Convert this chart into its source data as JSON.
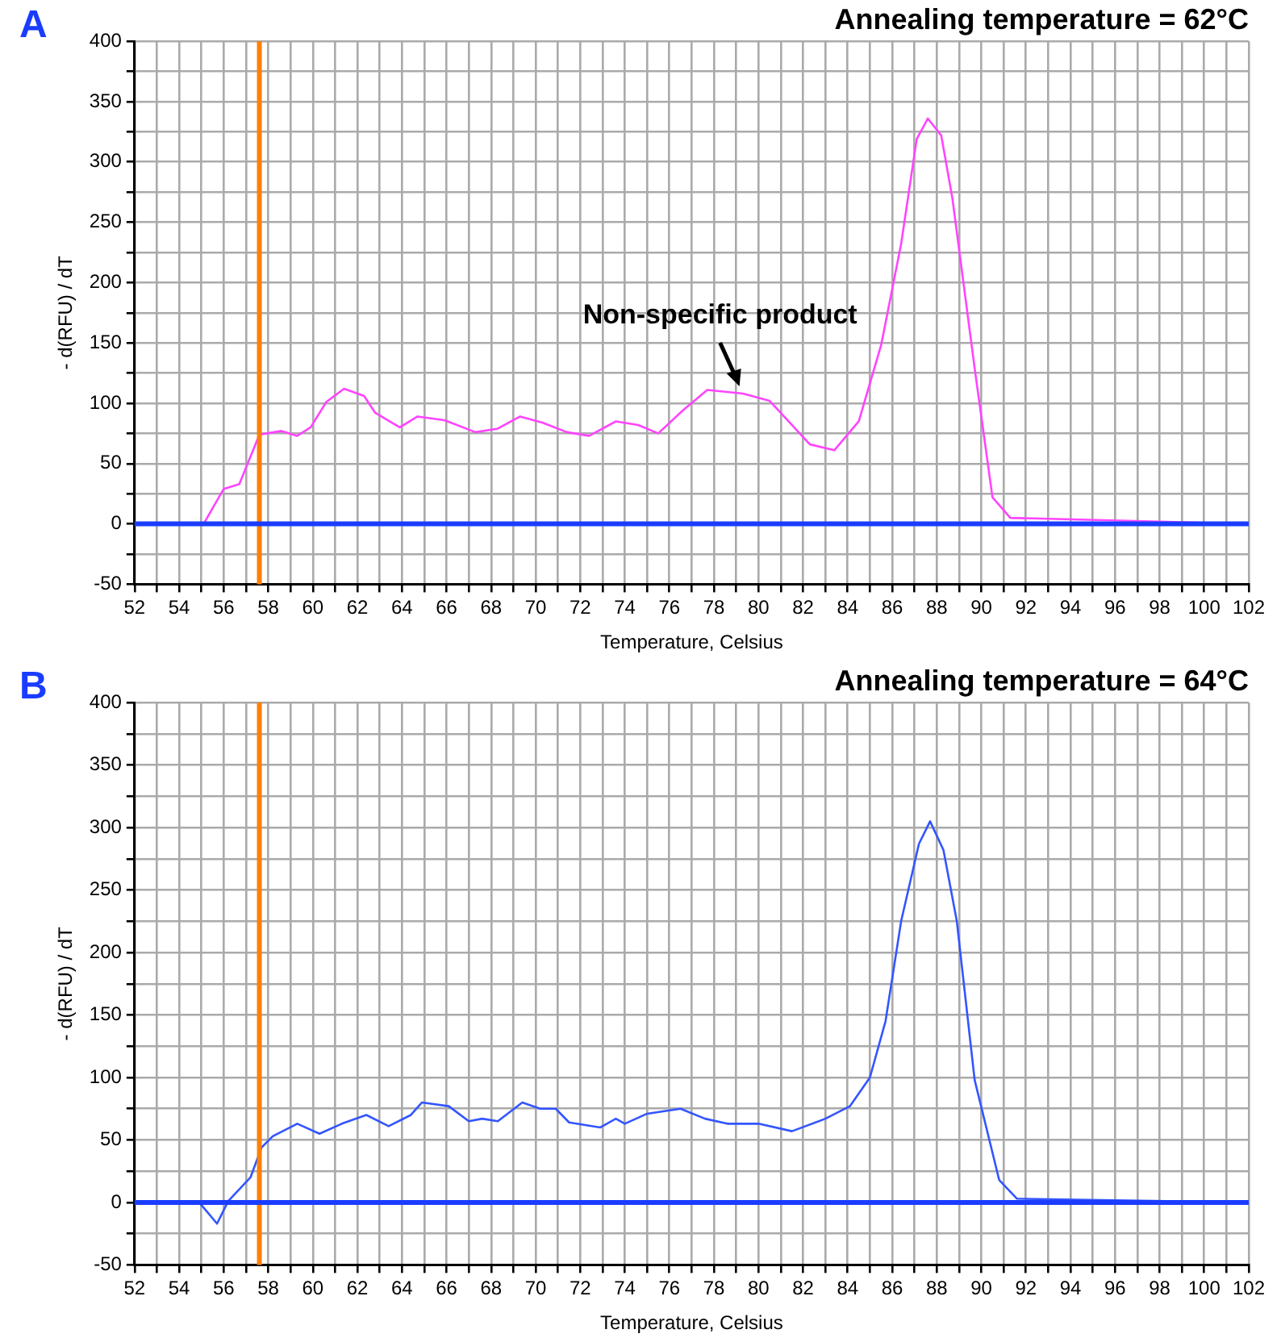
{
  "chart_data": [
    {
      "type": "line",
      "title": "Annealing temperature = 62°C",
      "xlabel": "Temperature, Celsius",
      "ylabel": "- d(RFU) / dT",
      "annotations": [
        "A",
        {
          "text": "Non-specific product",
          "x": 79,
          "y": 110
        }
      ],
      "x": [
        55.1,
        56.0,
        56.7,
        57.6,
        58.6,
        59.3,
        59.9,
        60.6,
        61.4,
        62.3,
        62.8,
        63.9,
        64.7,
        65.9,
        67.3,
        68.3,
        69.3,
        70.3,
        71.4,
        72.4,
        73.6,
        74.6,
        75.5,
        76.6,
        77.7,
        79.3,
        80.5,
        82.3,
        83.4,
        84.5,
        85.5,
        86.4,
        87.1,
        87.6,
        88.2,
        88.7,
        89.7,
        90.5,
        91.3,
        102
      ],
      "series": [
        {
          "color": "#ff44ff",
          "values": [
            0,
            29,
            33,
            74,
            77,
            73,
            80,
            101,
            112,
            106,
            92,
            80,
            89,
            86,
            76,
            79,
            89,
            84,
            76,
            73,
            85,
            82,
            75,
            94,
            111,
            108,
            102,
            66,
            61,
            85,
            148,
            232,
            319,
            336,
            322,
            270,
            129,
            22,
            5,
            0
          ]
        }
      ],
      "xlim": [
        52,
        102
      ],
      "ylim": [
        -50,
        400
      ],
      "xticks": [
        52,
        {
          "value": 53,
          "label": null
        },
        54,
        {
          "value": 55,
          "label": null
        },
        56,
        {
          "value": 57,
          "label": null
        },
        58,
        {
          "value": 59,
          "label": null
        },
        60,
        {
          "value": 61,
          "label": null
        },
        62,
        {
          "value": 63,
          "label": null
        },
        64,
        {
          "value": 65,
          "label": null
        },
        66,
        {
          "value": 67,
          "label": null
        },
        68,
        {
          "value": 69,
          "label": null
        },
        70,
        {
          "value": 71,
          "label": null
        },
        72,
        {
          "value": 73,
          "label": null
        },
        74,
        {
          "value": 75,
          "label": null
        },
        76,
        {
          "value": 77,
          "label": null
        },
        78,
        {
          "value": 79,
          "label": null
        },
        80,
        {
          "value": 81,
          "label": null
        },
        82,
        {
          "value": 83,
          "label": null
        },
        84,
        {
          "value": 85,
          "label": null
        },
        86,
        {
          "value": 87,
          "label": null
        },
        88,
        {
          "value": 89,
          "label": null
        },
        90,
        {
          "value": 91,
          "label": null
        },
        92,
        {
          "value": 93,
          "label": null
        },
        94,
        {
          "value": 95,
          "label": null
        },
        96,
        {
          "value": 97,
          "label": null
        },
        98,
        {
          "value": 99,
          "label": null
        },
        100,
        {
          "value": 101,
          "label": null
        },
        102
      ],
      "yticks": [
        -50,
        {
          "value": -25,
          "label": null
        },
        0,
        {
          "value": 25,
          "label": null
        },
        50,
        {
          "value": 75,
          "label": null
        },
        100,
        {
          "value": 125,
          "label": null
        },
        150,
        {
          "value": 175,
          "label": null
        },
        200,
        {
          "value": 225,
          "label": null
        },
        250,
        {
          "value": 275,
          "label": null
        },
        300,
        {
          "value": 325,
          "label": null
        },
        350,
        {
          "value": 375,
          "label": null
        },
        400
      ],
      "grid": true,
      "marker": "none",
      "ref_lines": [
        {
          "axis": "x",
          "value": 57.6,
          "color": "#ff8000"
        },
        {
          "axis": "y",
          "value": 0,
          "color": "#1a3cff"
        }
      ]
    },
    {
      "type": "line",
      "title": "Annealing temperature = 64°C",
      "xlabel": "Temperature, Celsius",
      "ylabel": "- d(RFU) / dT",
      "annotations": [
        "B"
      ],
      "x": [
        54.9,
        55.7,
        56.2,
        57.2,
        57.7,
        58.2,
        59.3,
        60.3,
        61.3,
        62.4,
        63.4,
        64.4,
        64.9,
        66.1,
        67.0,
        67.6,
        68.3,
        69.4,
        70.2,
        70.9,
        71.5,
        72.9,
        73.6,
        74.0,
        75.0,
        76.5,
        77.6,
        78.6,
        80.0,
        81.5,
        83.0,
        84.1,
        85.0,
        85.7,
        86.4,
        87.2,
        87.7,
        88.3,
        88.9,
        89.7,
        90.8,
        91.6,
        102
      ],
      "series": [
        {
          "color": "#3355ff",
          "values": [
            0,
            -17,
            1,
            20,
            44,
            53,
            63,
            55,
            63,
            70,
            61,
            70,
            80,
            77,
            65,
            67,
            65,
            80,
            75,
            75,
            64,
            60,
            67,
            63,
            71,
            75,
            67,
            63,
            63,
            57,
            67,
            77,
            100,
            145,
            225,
            287,
            305,
            282,
            225,
            98,
            18,
            3,
            0
          ]
        }
      ],
      "xlim": [
        52,
        102
      ],
      "ylim": [
        -50,
        400
      ],
      "xticks": [
        52,
        {
          "value": 53,
          "label": null
        },
        54,
        {
          "value": 55,
          "label": null
        },
        56,
        {
          "value": 57,
          "label": null
        },
        58,
        {
          "value": 59,
          "label": null
        },
        60,
        {
          "value": 61,
          "label": null
        },
        62,
        {
          "value": 63,
          "label": null
        },
        64,
        {
          "value": 65,
          "label": null
        },
        66,
        {
          "value": 67,
          "label": null
        },
        68,
        {
          "value": 69,
          "label": null
        },
        70,
        {
          "value": 71,
          "label": null
        },
        72,
        {
          "value": 73,
          "label": null
        },
        74,
        {
          "value": 75,
          "label": null
        },
        76,
        {
          "value": 77,
          "label": null
        },
        78,
        {
          "value": 79,
          "label": null
        },
        80,
        {
          "value": 81,
          "label": null
        },
        82,
        {
          "value": 83,
          "label": null
        },
        84,
        {
          "value": 85,
          "label": null
        },
        86,
        {
          "value": 87,
          "label": null
        },
        88,
        {
          "value": 89,
          "label": null
        },
        90,
        {
          "value": 91,
          "label": null
        },
        92,
        {
          "value": 93,
          "label": null
        },
        94,
        {
          "value": 95,
          "label": null
        },
        96,
        {
          "value": 97,
          "label": null
        },
        98,
        {
          "value": 99,
          "label": null
        },
        100,
        {
          "value": 101,
          "label": null
        },
        102
      ],
      "yticks": [
        -50,
        {
          "value": -25,
          "label": null
        },
        0,
        {
          "value": 25,
          "label": null
        },
        50,
        {
          "value": 75,
          "label": null
        },
        100,
        {
          "value": 125,
          "label": null
        },
        150,
        {
          "value": 175,
          "label": null
        },
        200,
        {
          "value": 225,
          "label": null
        },
        250,
        {
          "value": 275,
          "label": null
        },
        300,
        {
          "value": 325,
          "label": null
        },
        350,
        {
          "value": 375,
          "label": null
        },
        400
      ],
      "grid": true,
      "marker": "none",
      "ref_lines": [
        {
          "axis": "x",
          "value": 57.6,
          "color": "#ff8000"
        },
        {
          "axis": "y",
          "value": 0,
          "color": "#1a3cff"
        }
      ]
    }
  ]
}
